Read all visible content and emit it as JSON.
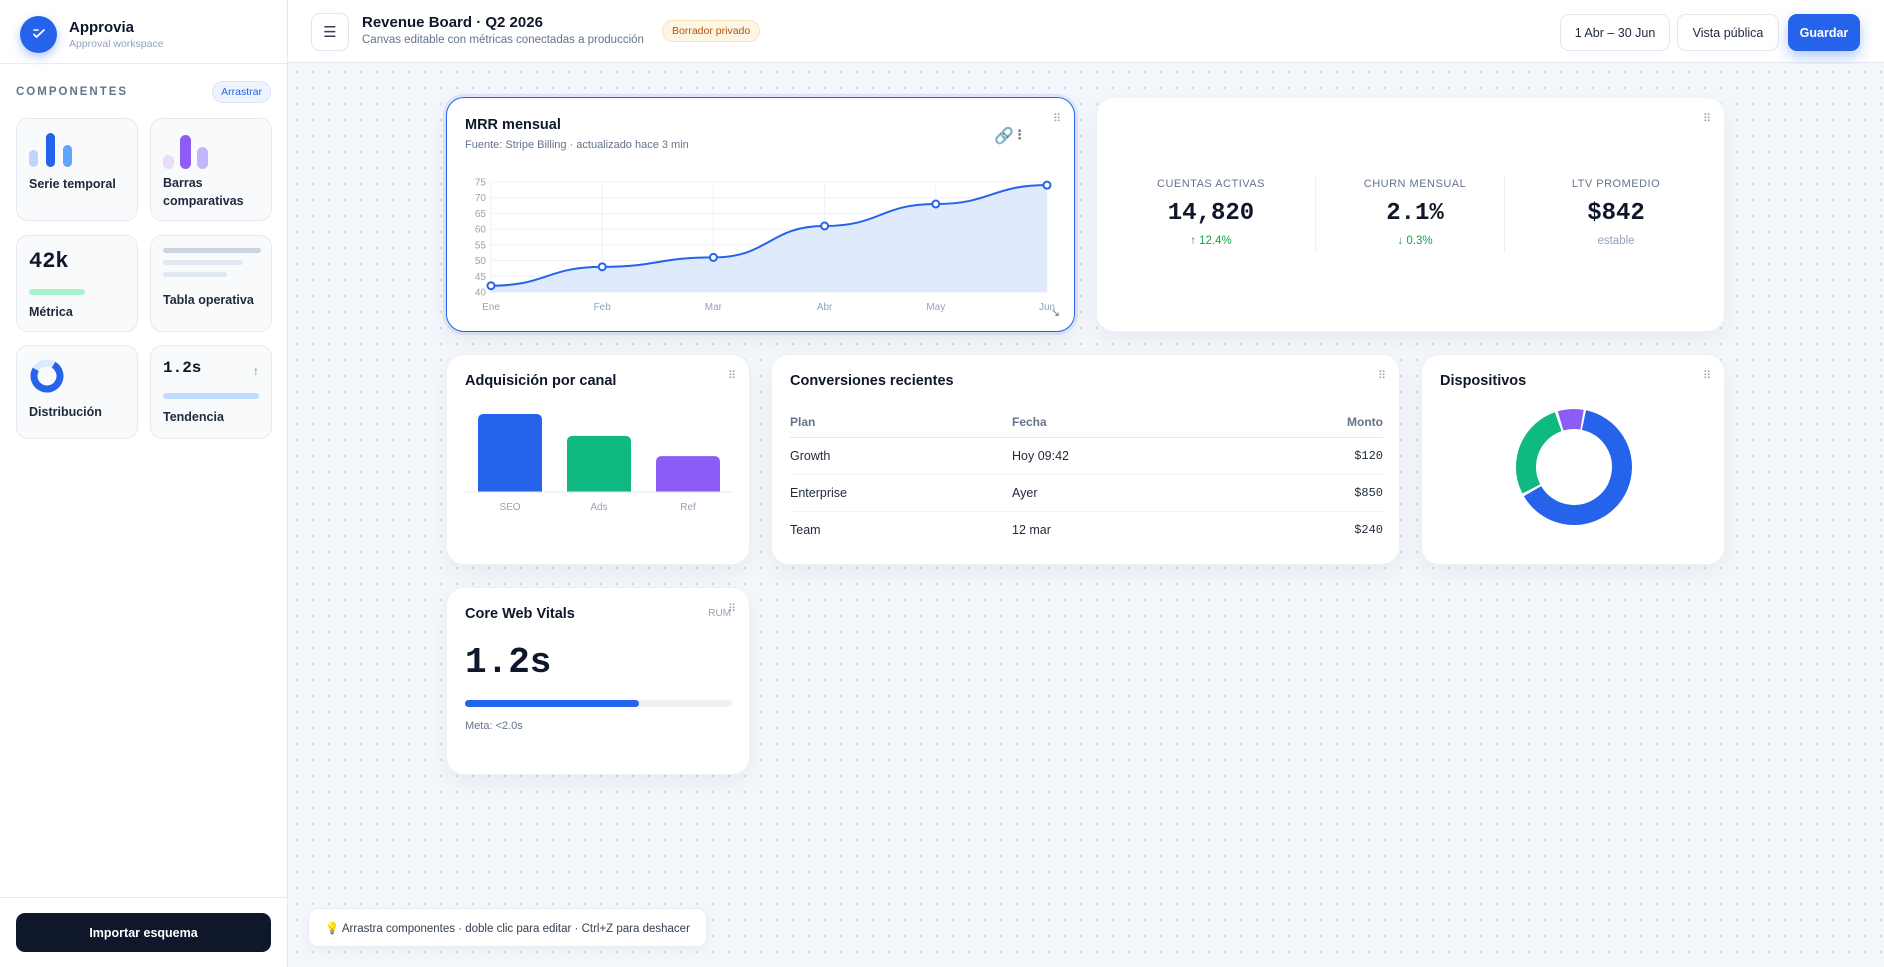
{
  "brand": {
    "name": "Approvia",
    "subtitle": "Approval workspace"
  },
  "sidebar": {
    "title": "COMPONENTES",
    "drag_label": "Arrastrar",
    "tiles": [
      {
        "label": "Serie temporal"
      },
      {
        "label": "Barras comparativas"
      },
      {
        "label": "Métrica",
        "value": "42k"
      },
      {
        "label": "Tabla operativa"
      },
      {
        "label": "Distribución"
      },
      {
        "label": "Tendencia",
        "value": "1.2s",
        "arrow": "↑"
      }
    ],
    "import_button": "Importar esquema"
  },
  "header": {
    "title": "Revenue Board · Q2 2026",
    "subtitle": "Canvas editable con métricas conectadas a producción",
    "badge": "Borrador privado",
    "date_range": "1 Abr – 30 Jun",
    "public_view": "Vista pública",
    "save": "Guardar"
  },
  "mrr_card": {
    "title": "MRR mensual",
    "subtitle": "Fuente: Stripe Billing · actualizado hace 3 min"
  },
  "chart_data": {
    "type": "area",
    "title": "MRR mensual",
    "categories": [
      "Ene",
      "Feb",
      "Mar",
      "Abr",
      "May",
      "Jun"
    ],
    "values": [
      42,
      48,
      51,
      61,
      68,
      74
    ],
    "yticks": [
      40,
      45,
      50,
      55,
      60,
      65,
      70,
      75
    ],
    "ylim": [
      40,
      75
    ],
    "grid": true,
    "color": "#2563eb"
  },
  "kpis": [
    {
      "label": "CUENTAS ACTIVAS",
      "value": "14,820",
      "delta": "↑ 12.4%"
    },
    {
      "label": "CHURN MENSUAL",
      "value": "2.1%",
      "delta": "↓ 0.3%"
    },
    {
      "label": "LTV PROMEDIO",
      "value": "$842",
      "delta": "estable"
    }
  ],
  "acquisition": {
    "title": "Adquisición por canal",
    "chart_data": {
      "type": "bar",
      "categories": [
        "SEO",
        "Ads",
        "Ref"
      ],
      "values": [
        100,
        72,
        46
      ],
      "colors": [
        "#2563eb",
        "#10b981",
        "#8b5cf6"
      ]
    }
  },
  "conversions": {
    "title": "Conversiones recientes",
    "columns": [
      "Plan",
      "Fecha",
      "Monto"
    ],
    "rows": [
      [
        "Growth",
        "Hoy 09:42",
        "$120"
      ],
      [
        "Enterprise",
        "Ayer",
        "$850"
      ],
      [
        "Team",
        "12 mar",
        "$240"
      ]
    ]
  },
  "devices": {
    "title": "Dispositivos",
    "chart_data": {
      "type": "pie",
      "values": [
        64,
        28,
        8
      ],
      "colors": [
        "#2563eb",
        "#10b981",
        "#8b5cf6"
      ]
    }
  },
  "vitals": {
    "title": "Core Web Vitals",
    "tag": "RUM",
    "value": "1.2s",
    "progress": 0.65,
    "goal": "Meta: <2.0s"
  },
  "tip": "💡 Arrastra componentes · doble clic para editar · Ctrl+Z para deshacer"
}
